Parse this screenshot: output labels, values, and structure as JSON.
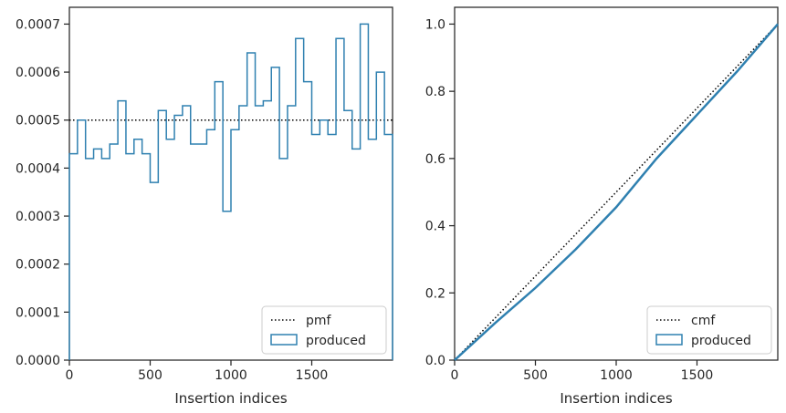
{
  "chart_data": [
    {
      "type": "histogram",
      "xlabel": "Insertion indices",
      "ylabel": "",
      "xlim": [
        0,
        2000
      ],
      "ylim": [
        0,
        0.000735
      ],
      "xticks": [
        0,
        500,
        1000,
        1500
      ],
      "xtick_labels": [
        "0",
        "500",
        "1000",
        "1500"
      ],
      "yticks": [
        0,
        0.0001,
        0.0002,
        0.0003,
        0.0004,
        0.0005,
        0.0006,
        0.0007
      ],
      "ytick_labels": [
        "0.0000",
        "0.0001",
        "0.0002",
        "0.0003",
        "0.0004",
        "0.0005",
        "0.0006",
        "0.0007"
      ],
      "bin_width": 50,
      "bin_edges_start": 0,
      "hist_values": [
        0.00043,
        0.0005,
        0.00042,
        0.00044,
        0.00042,
        0.00045,
        0.00054,
        0.00043,
        0.00046,
        0.00043,
        0.00037,
        0.00052,
        0.00046,
        0.00051,
        0.00053,
        0.00045,
        0.00045,
        0.00048,
        0.00058,
        0.00031,
        0.00048,
        0.00053,
        0.00064,
        0.00053,
        0.00054,
        0.00061,
        0.00042,
        0.00053,
        0.00067,
        0.00058,
        0.00047,
        0.0005,
        0.00047,
        0.00067,
        0.00052,
        0.00044,
        0.0007,
        0.00046,
        0.0006,
        0.00047
      ],
      "reference_value": 0.0005,
      "series": [
        {
          "name": "pmf",
          "style": "dotted",
          "color": "#000000"
        },
        {
          "name": "produced",
          "style": "step",
          "color": "#2f80b0"
        }
      ],
      "legend_position": "lower-right",
      "grid": false
    },
    {
      "type": "line",
      "xlabel": "Insertion indices",
      "ylabel": "",
      "xlim": [
        0,
        2000
      ],
      "ylim": [
        0,
        1.05
      ],
      "xticks": [
        0,
        500,
        1000,
        1500
      ],
      "xtick_labels": [
        "0",
        "500",
        "1000",
        "1500"
      ],
      "yticks": [
        0,
        0.2,
        0.4,
        0.6,
        0.8,
        1.0
      ],
      "ytick_labels": [
        "0.0",
        "0.2",
        "0.4",
        "0.6",
        "0.8",
        "1.0"
      ],
      "series": [
        {
          "name": "cmf",
          "style": "dotted",
          "color": "#000000",
          "x": [
            0,
            2000
          ],
          "y": [
            0,
            1.0
          ]
        },
        {
          "name": "produced",
          "style": "solid",
          "color": "#2f80b0",
          "x": [
            0,
            250,
            500,
            750,
            1000,
            1250,
            1500,
            1750,
            2000
          ],
          "y": [
            0,
            0.11,
            0.215,
            0.33,
            0.455,
            0.6,
            0.73,
            0.86,
            1.0
          ]
        }
      ],
      "legend_position": "lower-right",
      "grid": false
    }
  ]
}
